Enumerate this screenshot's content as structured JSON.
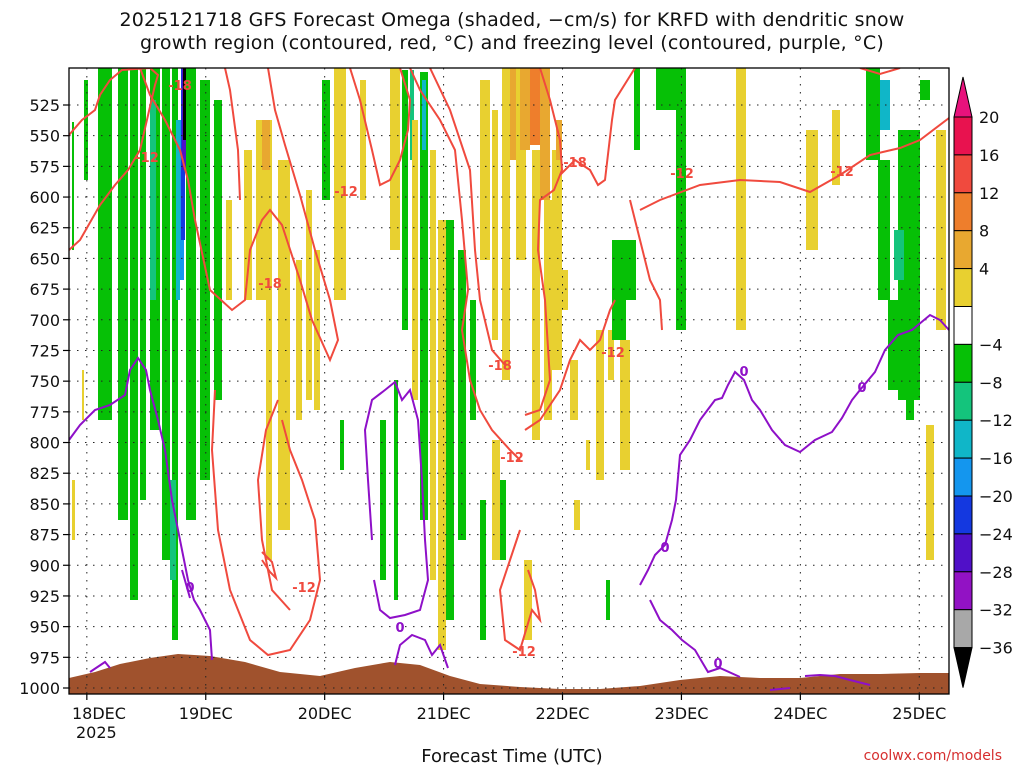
{
  "chart_data": {
    "type": "heatmap",
    "title_line1": "2025121718 GFS Forecast Omega (shaded, −cm/s) for KRFD with dendritic snow",
    "title_line2": "growth region (contoured, red, °C) and freezing level (contoured, purple, °C)",
    "xlabel": "Forecast Time (UTC)",
    "x_ticks": [
      "18DEC",
      "19DEC",
      "20DEC",
      "21DEC",
      "22DEC",
      "23DEC",
      "24DEC",
      "25DEC"
    ],
    "x_year_label": "2025",
    "x_range_days": [
      17.85,
      25.25
    ],
    "y_ticks": [
      525,
      550,
      575,
      600,
      625,
      650,
      675,
      700,
      725,
      750,
      775,
      800,
      825,
      850,
      875,
      900,
      925,
      950,
      975,
      1000
    ],
    "y_range_hpa": [
      500,
      1010
    ],
    "colorbar": {
      "labels": [
        "20",
        "16",
        "12",
        "8",
        "4",
        "−4",
        "−8",
        "−12",
        "−16",
        "−20",
        "−24",
        "−28",
        "−32",
        "−36"
      ],
      "colors": [
        "#e8124f",
        "#f04a3e",
        "#ee7e2c",
        "#e8a830",
        "#e8d030",
        "#ffffff",
        "#06c006",
        "#14c47c",
        "#10b6c8",
        "#1496ee",
        "#1438e0",
        "#5010c8",
        "#9212c4",
        "#a8a8a8"
      ],
      "top_arrow_color": "#e8127c",
      "bottom_arrow_color": "#000000"
    },
    "contour_labels": {
      "dendritic": [
        "-18",
        "-12",
        "-12",
        "-18",
        "-18",
        "-12",
        "-12",
        "-12",
        "-12",
        "-12"
      ],
      "freezing": [
        "0",
        "0",
        "0",
        "0",
        "0",
        "0"
      ]
    },
    "terrain_color": "#a0522d",
    "credit": "coolwx.com/models"
  }
}
